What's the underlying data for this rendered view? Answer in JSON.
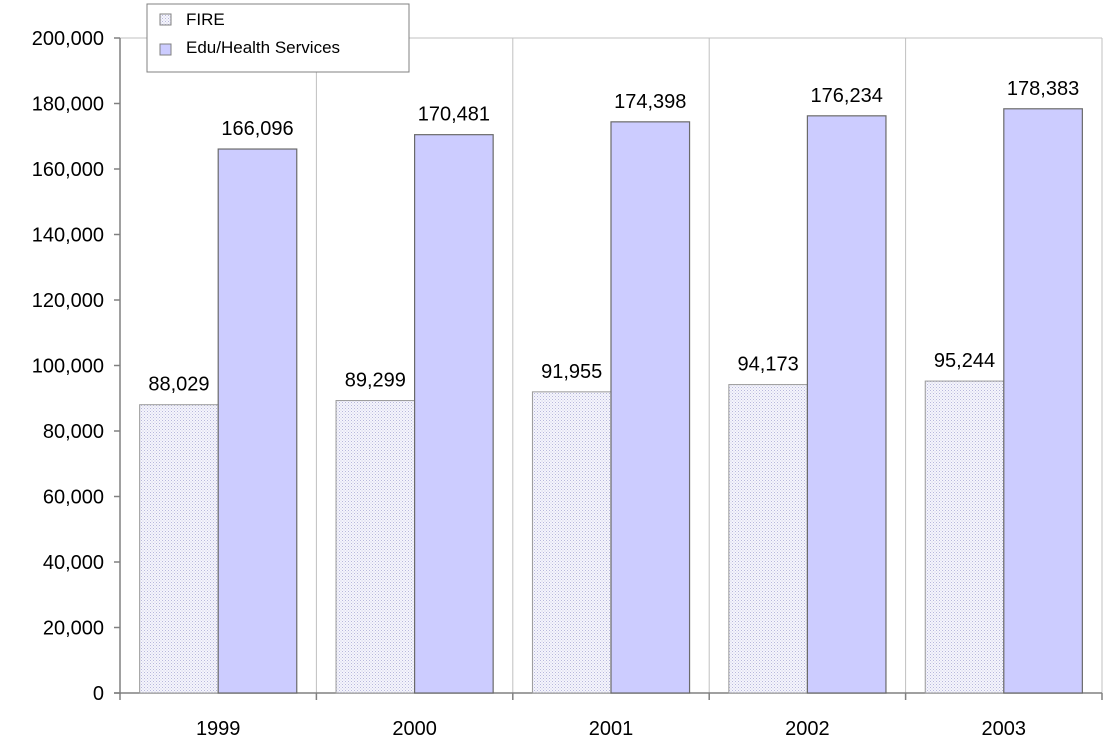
{
  "chart_data": {
    "type": "bar",
    "categories": [
      "1999",
      "2000",
      "2001",
      "2002",
      "2003"
    ],
    "series": [
      {
        "name": "FIRE",
        "values": [
          88029,
          89299,
          91955,
          94173,
          95244
        ],
        "color": "#f0f0fa",
        "pattern": "dotted"
      },
      {
        "name": "Edu/Health Services",
        "values": [
          166096,
          170481,
          174398,
          176234,
          178383
        ],
        "color": "#ccccff"
      }
    ],
    "value_labels": {
      "FIRE": [
        "88,029",
        "89,299",
        "91,955",
        "94,173",
        "95,244"
      ],
      "Edu/Health Services": [
        "166,096",
        "170,481",
        "174,398",
        "176,234",
        "178,383"
      ]
    },
    "yticks": [
      "0",
      "20,000",
      "40,000",
      "60,000",
      "80,000",
      "100,000",
      "120,000",
      "140,000",
      "160,000",
      "180,000",
      "200,000"
    ],
    "ylim": [
      0,
      200000
    ],
    "grid": "vertical",
    "legend_position": "top-left",
    "title": "",
    "xlabel": "",
    "ylabel": ""
  }
}
